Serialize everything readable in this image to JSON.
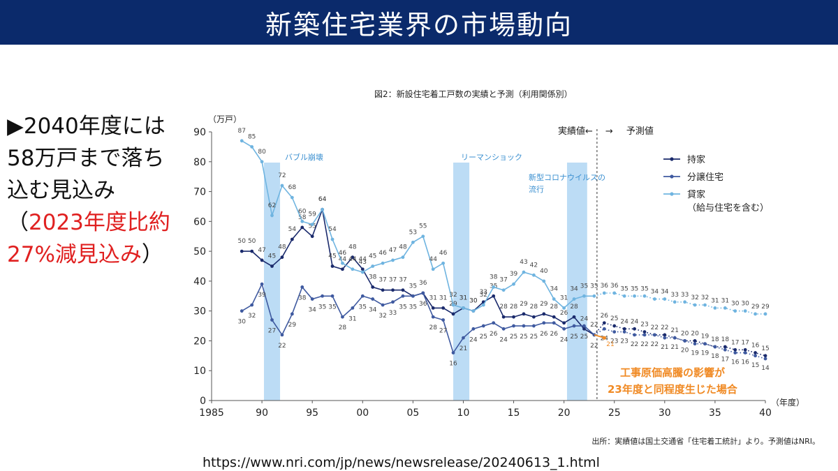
{
  "header": {
    "title": "新築住宅業界の市場動向"
  },
  "bullet": {
    "marker": "▶",
    "text_black_1": "2040年度には58万戸まで落ち込む見込み（",
    "text_red": "2023年度比約27%減見込み",
    "text_black_2": "）"
  },
  "footer": {
    "url": "https://www.nri.com/jp/news/newsrelease/20240613_1.html"
  },
  "chart_data": {
    "type": "line",
    "title": "図2：新設住宅着工戸数の実績と予測（利用関係別）",
    "ylabel": "（万戸）",
    "xlabel": "（年度）",
    "ylim": [
      0,
      90
    ],
    "xlim": [
      1985,
      2040
    ],
    "y_ticks": [
      0,
      10,
      20,
      30,
      40,
      50,
      60,
      70,
      80,
      90
    ],
    "x_ticks": [
      1985,
      1990,
      1995,
      2000,
      2005,
      2010,
      2015,
      2020,
      2025,
      2030,
      2035,
      2040
    ],
    "x_tick_labels": [
      "1985",
      "90",
      "95",
      "00",
      "05",
      "10",
      "15",
      "20",
      "25",
      "30",
      "35",
      "40"
    ],
    "divider_year": 2023,
    "divider_labels": {
      "actual": "実績値←",
      "arrow": "→",
      "forecast": "予測値"
    },
    "source": "出所：実績値は国土交通省「住宅着工統計」より。予測値はNRI。",
    "bands": [
      {
        "label": "バブル崩壊",
        "x0": 1990.2,
        "x1": 1991.8
      },
      {
        "label": "リーマンショック",
        "x0": 2009.0,
        "x1": 2010.6
      },
      {
        "label": "新型コロナウイルスの流行",
        "label_lines": [
          "新型コロナウイルスの",
          "流行"
        ],
        "x0": 2020.3,
        "x1": 2022.3
      }
    ],
    "legend": [
      "持家",
      "分譲住宅",
      "貸家",
      "（給与住宅を含む）"
    ],
    "series": [
      {
        "name": "持家",
        "color": "#1a2a6c",
        "actual": {
          "x": [
            1988,
            1989,
            1990,
            1991,
            1992,
            1993,
            1994,
            1995,
            1996,
            1997,
            1998,
            1999,
            2000,
            2001,
            2002,
            2003,
            2004,
            2005,
            2006,
            2007,
            2008,
            2009,
            2010,
            2011,
            2012,
            2013,
            2014,
            2015,
            2016,
            2017,
            2018,
            2019,
            2020,
            2021,
            2022,
            2023
          ],
          "y": [
            50,
            50,
            47,
            45,
            48,
            54,
            58,
            55,
            64,
            45,
            44,
            48,
            44,
            38,
            37,
            37,
            37,
            35,
            36,
            31,
            31,
            29,
            31,
            30,
            33,
            35,
            28,
            28,
            29,
            28,
            29,
            28,
            26,
            28,
            24,
            22
          ]
        },
        "forecast": {
          "x": [
            2024,
            2025,
            2026,
            2027,
            2028,
            2029,
            2030,
            2031,
            2032,
            2033,
            2034,
            2035,
            2036,
            2037,
            2038,
            2039,
            2040
          ],
          "y": [
            26,
            25,
            24,
            24,
            23,
            22,
            22,
            21,
            20,
            20,
            19,
            18,
            18,
            17,
            17,
            16,
            15
          ]
        }
      },
      {
        "name": "分譲住宅",
        "color": "#3f5aa0",
        "actual": {
          "x": [
            1988,
            1989,
            1990,
            1991,
            1992,
            1993,
            1994,
            1995,
            1996,
            1997,
            1998,
            1999,
            2000,
            2001,
            2002,
            2003,
            2004,
            2005,
            2006,
            2007,
            2008,
            2009,
            2010,
            2011,
            2012,
            2013,
            2014,
            2015,
            2016,
            2017,
            2018,
            2019,
            2020,
            2021,
            2022,
            2023
          ],
          "y": [
            30,
            32,
            39,
            27,
            22,
            29,
            38,
            34,
            35,
            35,
            28,
            31,
            35,
            34,
            32,
            33,
            35,
            35,
            36,
            28,
            27,
            16,
            21,
            24,
            25,
            26,
            24,
            25,
            25,
            25,
            26,
            26,
            24,
            25,
            25,
            22
          ]
        },
        "forecast": {
          "x": [
            2024,
            2025,
            2026,
            2027,
            2028,
            2029,
            2030,
            2031,
            2032,
            2033,
            2034,
            2035,
            2036,
            2037,
            2038,
            2039,
            2040
          ],
          "y": [
            24,
            23,
            23,
            22,
            22,
            22,
            21,
            21,
            20,
            19,
            19,
            18,
            17,
            16,
            16,
            15,
            14
          ]
        }
      },
      {
        "name": "貸家",
        "color": "#6fb4e0",
        "actual": {
          "x": [
            1988,
            1989,
            1990,
            1991,
            1992,
            1993,
            1994,
            1995,
            1996,
            1997,
            1998,
            1999,
            2000,
            2001,
            2002,
            2003,
            2004,
            2005,
            2006,
            2007,
            2008,
            2009,
            2010,
            2011,
            2012,
            2013,
            2014,
            2015,
            2016,
            2017,
            2018,
            2019,
            2020,
            2021,
            2022,
            2023
          ],
          "y": [
            87,
            85,
            80,
            62,
            72,
            68,
            60,
            59,
            64,
            54,
            46,
            44,
            43,
            45,
            46,
            47,
            48,
            53,
            55,
            44,
            46,
            32,
            31,
            30,
            32,
            38,
            37,
            39,
            43,
            42,
            40,
            34,
            31,
            34,
            35,
            35
          ]
        },
        "forecast": {
          "x": [
            2024,
            2025,
            2026,
            2027,
            2028,
            2029,
            2030,
            2031,
            2032,
            2033,
            2034,
            2035,
            2036,
            2037,
            2038,
            2039,
            2040
          ],
          "y": [
            36,
            36,
            35,
            35,
            35,
            34,
            34,
            33,
            33,
            32,
            32,
            31,
            31,
            30,
            30,
            29,
            29
          ]
        }
      }
    ],
    "scenario": {
      "label_lines": [
        "工事原価高騰の影響が",
        "23年度と同程度生じた場合"
      ],
      "color": "#f08a24",
      "x": [
        2023,
        2024
      ],
      "y": [
        22,
        21
      ],
      "value_label": "21"
    }
  }
}
